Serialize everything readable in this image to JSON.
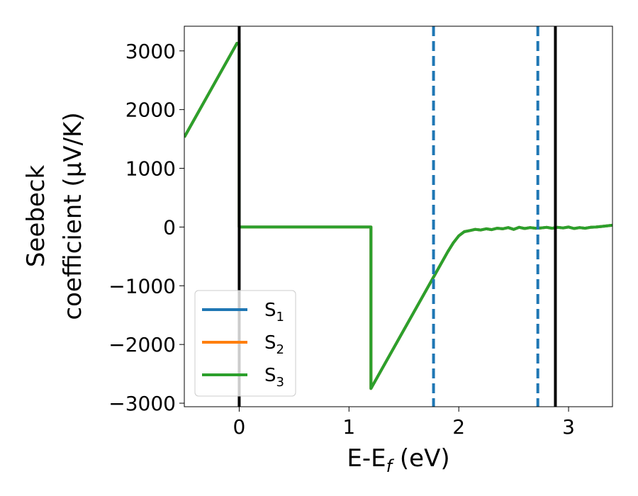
{
  "chart_data": {
    "type": "line",
    "xlabel": "E-E_f (eV)",
    "xlabel_parts": {
      "main": "E-E",
      "sub": "f",
      "rest": " (eV)"
    },
    "ylabel_lines": [
      "Seebeck",
      "coefficient  (μV/K)"
    ],
    "xlim": [
      -0.5,
      3.4
    ],
    "ylim": [
      -3060,
      3420
    ],
    "x_ticks": [
      0,
      1,
      2,
      3
    ],
    "x_tick_labels": [
      "0",
      "1",
      "2",
      "3"
    ],
    "y_ticks": [
      -3000,
      -2000,
      -1000,
      0,
      1000,
      2000,
      3000
    ],
    "y_tick_labels": [
      "−3000",
      "−2000",
      "−1000",
      "0",
      "1000",
      "2000",
      "3000"
    ],
    "grid": false,
    "legend_position": "lower-left",
    "vlines": [
      {
        "x": 0.0,
        "style": "solid",
        "color": "#000000"
      },
      {
        "x": 2.88,
        "style": "solid",
        "color": "#000000"
      },
      {
        "x": 1.77,
        "style": "dashed",
        "color": "#1f77b4"
      },
      {
        "x": 2.72,
        "style": "dashed",
        "color": "#1f77b4"
      }
    ],
    "series": [
      {
        "name": "S_1",
        "legend_main": "S",
        "legend_sub": "1",
        "color": "#1f77b4",
        "x": [
          -0.5,
          -0.02,
          0.0,
          0.0,
          1.2,
          1.2,
          1.9,
          1.95,
          2.0,
          2.05,
          2.1,
          2.15,
          2.2,
          2.25,
          2.3,
          2.35,
          2.4,
          2.45,
          2.5,
          2.55,
          2.6,
          2.65,
          2.7,
          2.75,
          2.8,
          2.85,
          2.9,
          2.95,
          3.0,
          3.05,
          3.1,
          3.15,
          3.2,
          3.25,
          3.3,
          3.4
        ],
        "y": [
          1530,
          3130,
          3120,
          0,
          0,
          -2750,
          -420,
          -270,
          -150,
          -80,
          -60,
          -40,
          -50,
          -30,
          -45,
          -20,
          -30,
          -10,
          -40,
          -5,
          -25,
          -10,
          -20,
          -15,
          -5,
          -20,
          -5,
          -15,
          0,
          -25,
          -10,
          -20,
          -5,
          0,
          10,
          30
        ]
      },
      {
        "name": "S_2",
        "legend_main": "S",
        "legend_sub": "2",
        "color": "#ff7f0e",
        "x": [
          -0.5,
          -0.02,
          0.0,
          0.0,
          1.2,
          1.2,
          1.9,
          1.95,
          2.0,
          2.05,
          2.1,
          2.15,
          2.2,
          2.25,
          2.3,
          2.35,
          2.4,
          2.45,
          2.5,
          2.55,
          2.6,
          2.65,
          2.7,
          2.75,
          2.8,
          2.85,
          2.9,
          2.95,
          3.0,
          3.05,
          3.1,
          3.15,
          3.2,
          3.25,
          3.3,
          3.4
        ],
        "y": [
          1530,
          3130,
          3120,
          0,
          0,
          -2750,
          -420,
          -270,
          -150,
          -80,
          -60,
          -40,
          -50,
          -30,
          -45,
          -20,
          -30,
          -10,
          -40,
          -5,
          -25,
          -10,
          -20,
          -15,
          -5,
          -20,
          -5,
          -15,
          0,
          -25,
          -10,
          -20,
          -5,
          0,
          10,
          30
        ]
      },
      {
        "name": "S_3",
        "legend_main": "S",
        "legend_sub": "3",
        "color": "#2ca02c",
        "x": [
          -0.5,
          -0.02,
          0.0,
          0.0,
          1.2,
          1.2,
          1.9,
          1.95,
          2.0,
          2.05,
          2.1,
          2.15,
          2.2,
          2.25,
          2.3,
          2.35,
          2.4,
          2.45,
          2.5,
          2.55,
          2.6,
          2.65,
          2.7,
          2.75,
          2.8,
          2.85,
          2.9,
          2.95,
          3.0,
          3.05,
          3.1,
          3.15,
          3.2,
          3.25,
          3.3,
          3.4
        ],
        "y": [
          1530,
          3130,
          3120,
          0,
          0,
          -2750,
          -420,
          -270,
          -150,
          -80,
          -60,
          -40,
          -50,
          -30,
          -45,
          -20,
          -30,
          -10,
          -40,
          -5,
          -25,
          -10,
          -20,
          -15,
          -5,
          -20,
          -5,
          -15,
          0,
          -25,
          -10,
          -20,
          -5,
          0,
          10,
          30
        ]
      }
    ]
  }
}
